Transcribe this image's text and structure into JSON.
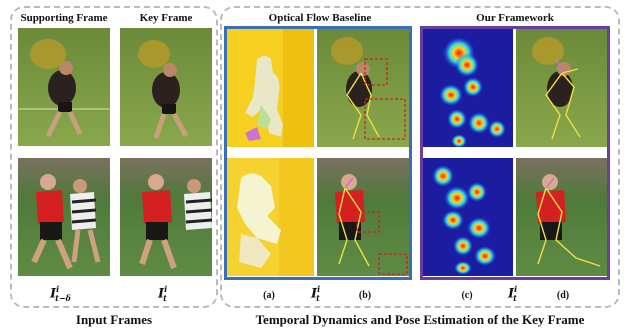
{
  "headers": {
    "supporting_frame": "Supporting Frame",
    "key_frame": "Key Frame",
    "optical_flow": "Optical Flow Baseline",
    "our_framework": "Our Framework"
  },
  "labels": {
    "a": "(a)",
    "b": "(b)",
    "c": "(c)",
    "d": "(d)"
  },
  "math": {
    "base": "I",
    "sup": "i",
    "sub_support": "t−δ",
    "sub_key": "t"
  },
  "captions": {
    "left": "Input Frames",
    "right": "Temporal Dynamics and Pose Estimation of the Key Frame"
  },
  "colors": {
    "optical_border": "#3a6fb8",
    "framework_border": "#6a3ea0",
    "dashed_border": "#bbbbbb",
    "skeleton": "#f0e040",
    "bbox": "#d32020"
  }
}
